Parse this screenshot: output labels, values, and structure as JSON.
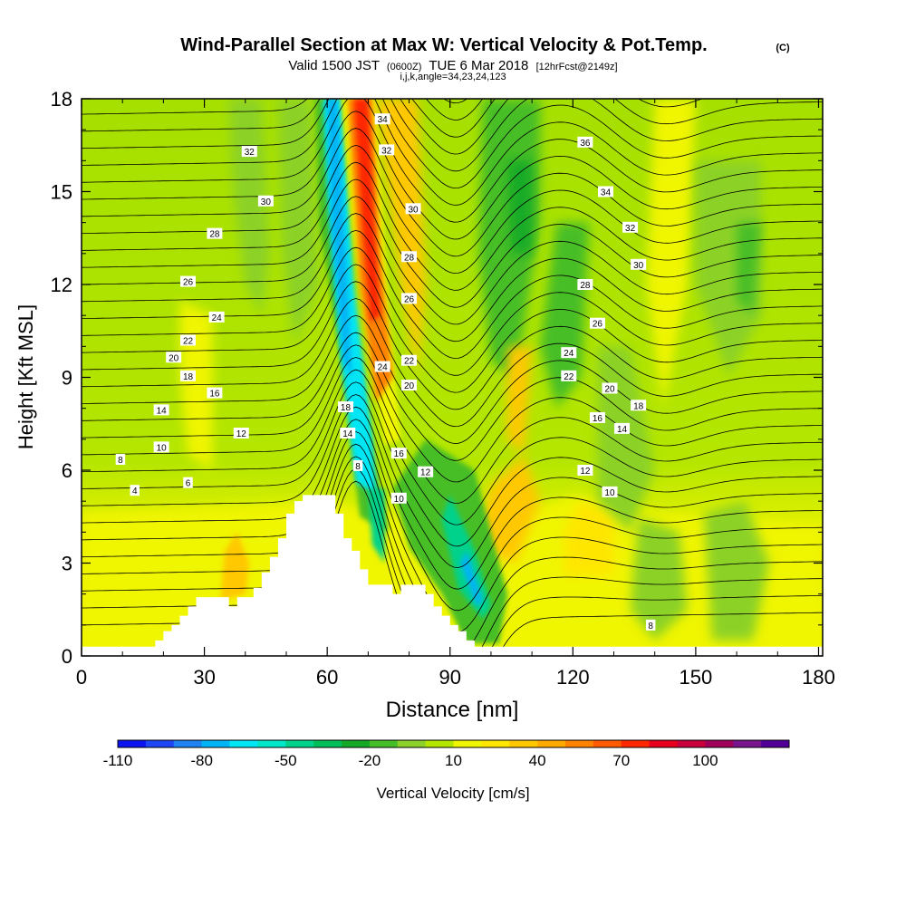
{
  "chart_data": {
    "type": "heatmap",
    "title": "Wind-Parallel Section at Max W: Vertical Velocity & Pot.Temp.",
    "title_mark": "(C)",
    "subtitle": {
      "valid_prefix": "Valid 1500 JST",
      "utc": "(0600Z)",
      "date": "TUE 6 Mar 2018",
      "forecast": "[12hrFcst@2149z]"
    },
    "subtitle2": "i,j,k,angle=34,23,24,123",
    "xlabel": "Distance [nm]",
    "ylabel": "Height [Kft MSL]",
    "xlim": [
      0,
      181
    ],
    "ylim": [
      0,
      18
    ],
    "x_ticks": [
      0,
      30,
      60,
      90,
      120,
      150,
      180
    ],
    "y_ticks": [
      0,
      3,
      6,
      9,
      12,
      15,
      18
    ],
    "colorbar": {
      "label": "Vertical Velocity [cm/s]",
      "min": -110,
      "step": 10,
      "tick_labels": [
        "-110",
        "-80",
        "-50",
        "-20",
        "10",
        "40",
        "70",
        "100"
      ],
      "colors": [
        "#0c14f0",
        "#1e46f5",
        "#1e82f0",
        "#00b4f5",
        "#00e6f5",
        "#00e6c8",
        "#00d28c",
        "#00be5a",
        "#14aa28",
        "#46be28",
        "#8cd228",
        "#b4e600",
        "#f0f500",
        "#ffe600",
        "#ffc800",
        "#ffaa00",
        "#ff8200",
        "#ff5a00",
        "#ff2800",
        "#e6001e",
        "#c8003c",
        "#a0005a",
        "#78148c",
        "#500096"
      ]
    },
    "terrain": [
      [
        0,
        0.3
      ],
      [
        18,
        0.3
      ],
      [
        18,
        0.5
      ],
      [
        20,
        0.5
      ],
      [
        20,
        0.8
      ],
      [
        22,
        0.8
      ],
      [
        22,
        1.0
      ],
      [
        24,
        1.0
      ],
      [
        24,
        1.3
      ],
      [
        26,
        1.3
      ],
      [
        26,
        1.6
      ],
      [
        28,
        1.6
      ],
      [
        28,
        1.9
      ],
      [
        36,
        1.9
      ],
      [
        36,
        1.6
      ],
      [
        38,
        1.6
      ],
      [
        38,
        1.9
      ],
      [
        42,
        1.9
      ],
      [
        42,
        2.2
      ],
      [
        44,
        2.2
      ],
      [
        44,
        2.7
      ],
      [
        46,
        2.7
      ],
      [
        46,
        3.2
      ],
      [
        48,
        3.2
      ],
      [
        48,
        3.8
      ],
      [
        50,
        3.8
      ],
      [
        50,
        4.6
      ],
      [
        52,
        4.6
      ],
      [
        52,
        5.0
      ],
      [
        54,
        5.0
      ],
      [
        54,
        5.2
      ],
      [
        62,
        5.2
      ],
      [
        62,
        4.6
      ],
      [
        64,
        4.6
      ],
      [
        64,
        3.8
      ],
      [
        66,
        3.8
      ],
      [
        66,
        3.4
      ],
      [
        68,
        3.4
      ],
      [
        68,
        2.8
      ],
      [
        70,
        2.8
      ],
      [
        70,
        2.3
      ],
      [
        76,
        2.3
      ],
      [
        76,
        2.0
      ],
      [
        78,
        2.0
      ],
      [
        78,
        2.3
      ],
      [
        84,
        2.3
      ],
      [
        84,
        2.0
      ],
      [
        86,
        2.0
      ],
      [
        86,
        1.6
      ],
      [
        88,
        1.6
      ],
      [
        88,
        1.3
      ],
      [
        90,
        1.3
      ],
      [
        90,
        1.0
      ],
      [
        92,
        1.0
      ],
      [
        92,
        0.8
      ],
      [
        94,
        0.8
      ],
      [
        94,
        0.5
      ],
      [
        96,
        0.5
      ],
      [
        96,
        0.3
      ],
      [
        181,
        0.3
      ]
    ],
    "contour_labels": [
      {
        "x": 9.5,
        "y": 6.35,
        "text": "8"
      },
      {
        "x": 13,
        "y": 5.35,
        "text": "4"
      },
      {
        "x": 26,
        "y": 5.6,
        "text": "6"
      },
      {
        "x": 19.5,
        "y": 6.75,
        "text": "10"
      },
      {
        "x": 19.5,
        "y": 7.95,
        "text": "14"
      },
      {
        "x": 39,
        "y": 7.2,
        "text": "12"
      },
      {
        "x": 32.5,
        "y": 8.5,
        "text": "16"
      },
      {
        "x": 26,
        "y": 9.05,
        "text": "18"
      },
      {
        "x": 22.5,
        "y": 9.65,
        "text": "20"
      },
      {
        "x": 26,
        "y": 10.2,
        "text": "22"
      },
      {
        "x": 33,
        "y": 10.95,
        "text": "24"
      },
      {
        "x": 26,
        "y": 12.1,
        "text": "26"
      },
      {
        "x": 32.5,
        "y": 13.65,
        "text": "28"
      },
      {
        "x": 45,
        "y": 14.7,
        "text": "30"
      },
      {
        "x": 41,
        "y": 16.3,
        "text": "32"
      },
      {
        "x": 73.5,
        "y": 17.35,
        "text": "34"
      },
      {
        "x": 74.5,
        "y": 16.35,
        "text": "32"
      },
      {
        "x": 81,
        "y": 14.45,
        "text": "30"
      },
      {
        "x": 80,
        "y": 12.9,
        "text": "28"
      },
      {
        "x": 80,
        "y": 11.55,
        "text": "26"
      },
      {
        "x": 80,
        "y": 9.55,
        "text": "22"
      },
      {
        "x": 73.5,
        "y": 9.35,
        "text": "24"
      },
      {
        "x": 80,
        "y": 8.75,
        "text": "20"
      },
      {
        "x": 64.5,
        "y": 8.05,
        "text": "18"
      },
      {
        "x": 65,
        "y": 7.2,
        "text": "14"
      },
      {
        "x": 77.5,
        "y": 6.55,
        "text": "16"
      },
      {
        "x": 67.5,
        "y": 6.15,
        "text": "8"
      },
      {
        "x": 84,
        "y": 5.95,
        "text": "12"
      },
      {
        "x": 77.5,
        "y": 5.1,
        "text": "10"
      },
      {
        "x": 123,
        "y": 16.6,
        "text": "36"
      },
      {
        "x": 128,
        "y": 15.0,
        "text": "34"
      },
      {
        "x": 134,
        "y": 13.85,
        "text": "32"
      },
      {
        "x": 136,
        "y": 12.65,
        "text": "30"
      },
      {
        "x": 123,
        "y": 12.0,
        "text": "28"
      },
      {
        "x": 126,
        "y": 10.75,
        "text": "26"
      },
      {
        "x": 119,
        "y": 9.8,
        "text": "24"
      },
      {
        "x": 119,
        "y": 9.05,
        "text": "22"
      },
      {
        "x": 129,
        "y": 8.65,
        "text": "20"
      },
      {
        "x": 136,
        "y": 8.1,
        "text": "18"
      },
      {
        "x": 126,
        "y": 7.7,
        "text": "16"
      },
      {
        "x": 132,
        "y": 7.35,
        "text": "14"
      },
      {
        "x": 123,
        "y": 6.0,
        "text": "12"
      },
      {
        "x": 129,
        "y": 5.3,
        "text": "10"
      },
      {
        "x": 139,
        "y": 1.0,
        "text": "8"
      }
    ]
  }
}
